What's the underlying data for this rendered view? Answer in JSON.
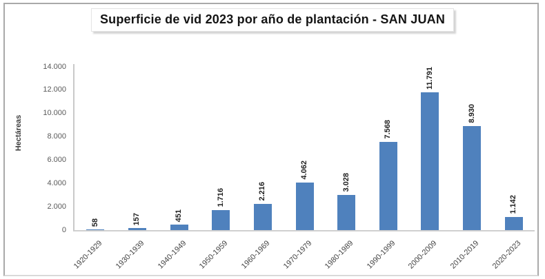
{
  "title": "Superficie de vid 2023 por año de plantación - SAN JUAN",
  "chart_data": {
    "type": "bar",
    "title": "Superficie de vid 2023 por año de plantación - SAN JUAN",
    "xlabel": "",
    "ylabel": "Hectáreas",
    "categories": [
      "1920-1929",
      "1930-1939",
      "1940-1949",
      "1950-1959",
      "1960-1969",
      "1970-1979",
      "1980-1989",
      "1990-1999",
      "2000-2009",
      "2010-2019",
      "2020-2023"
    ],
    "values": [
      58,
      157,
      451,
      1716,
      2216,
      4062,
      3028,
      7568,
      11791,
      8930,
      1142
    ],
    "value_labels": [
      "58",
      "157",
      "451",
      "1.716",
      "2.216",
      "4.062",
      "3.028",
      "7.568",
      "11.791",
      "8.930",
      "1.142"
    ],
    "ylim": [
      0,
      14000
    ],
    "yticks": [
      0,
      2000,
      4000,
      6000,
      8000,
      10000,
      12000,
      14000
    ],
    "ytick_labels": [
      "0",
      "2.000",
      "4.000",
      "6.000",
      "8.000",
      "10.000",
      "12.000",
      "14.000"
    ],
    "grid": false,
    "legend": "none",
    "bar_color": "#4F81BD"
  },
  "colors": {
    "bar": "#4F81BD",
    "axis_line": "#cfcfcf",
    "tick_label": "#595959",
    "data_label": "#1f1f1f",
    "frame_border": "#a9a9a9"
  }
}
